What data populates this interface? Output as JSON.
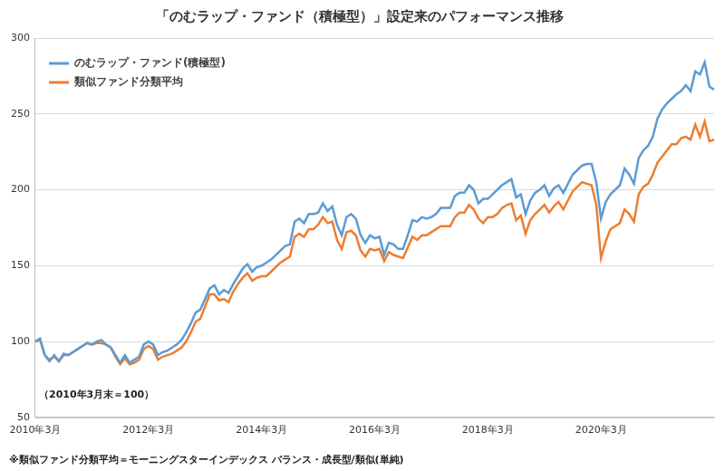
{
  "chart_data": {
    "type": "line",
    "title": "「のむラップ・ファンド（積極型）」設定来のパフォーマンス推移",
    "annotations": [
      "（2010年3月末＝100）",
      "※類似ファンド分類平均＝モーニングスターインデックス バランス・成長型/類似(単純)"
    ],
    "categories": [
      "2010年3月",
      null,
      null,
      null,
      null,
      null,
      null,
      null,
      null,
      null,
      null,
      null,
      null,
      null,
      null,
      null,
      null,
      null,
      null,
      null,
      null,
      null,
      null,
      null,
      "2012年3月",
      null,
      null,
      null,
      null,
      null,
      null,
      null,
      null,
      null,
      null,
      null,
      null,
      null,
      null,
      null,
      null,
      null,
      null,
      null,
      null,
      null,
      null,
      null,
      "2014年3月",
      null,
      null,
      null,
      null,
      null,
      null,
      null,
      null,
      null,
      null,
      null,
      null,
      null,
      null,
      null,
      null,
      null,
      null,
      null,
      null,
      null,
      null,
      null,
      "2016年3月",
      null,
      null,
      null,
      null,
      null,
      null,
      null,
      null,
      null,
      null,
      null,
      null,
      null,
      null,
      null,
      null,
      null,
      null,
      null,
      null,
      null,
      null,
      null,
      "2018年3月",
      null,
      null,
      null,
      null,
      null,
      null,
      null,
      null,
      null,
      null,
      null,
      null,
      null,
      null,
      null,
      null,
      null,
      null,
      null,
      null,
      null,
      null,
      null,
      "2020年3月",
      null,
      null,
      null,
      null,
      null,
      null,
      null,
      null,
      null,
      null,
      null,
      null,
      null,
      null,
      null,
      null,
      null,
      null,
      null,
      null,
      null,
      null,
      null,
      null
    ],
    "series": [
      {
        "name": "のむラップ・ファンド(積極型)",
        "color": "#5b9bd5",
        "values": [
          100,
          102,
          91,
          87,
          91,
          87,
          92,
          91,
          93,
          95,
          97,
          99,
          98,
          100,
          101,
          98,
          96,
          91,
          86,
          91,
          86,
          88,
          90,
          98,
          100,
          98,
          91,
          93,
          94,
          96,
          98,
          101,
          106,
          112,
          119,
          121,
          128,
          135,
          137,
          131,
          134,
          132,
          138,
          143,
          148,
          151,
          146,
          149,
          150,
          152,
          154,
          157,
          160,
          163,
          164,
          179,
          181,
          178,
          184,
          184,
          185,
          191,
          186,
          189,
          177,
          170,
          182,
          184,
          181,
          170,
          165,
          170,
          168,
          169,
          157,
          165,
          164,
          161,
          161,
          170,
          180,
          179,
          182,
          181,
          182,
          184,
          188,
          188,
          188,
          196,
          198,
          198,
          203,
          200,
          191,
          194,
          194,
          197,
          200,
          203,
          205,
          207,
          195,
          197,
          184,
          193,
          198,
          200,
          203,
          196,
          201,
          203,
          198,
          204,
          210,
          213,
          216,
          217,
          217,
          205,
          181,
          192,
          197,
          200,
          203,
          214,
          210,
          204,
          221,
          226,
          229,
          235,
          247,
          253,
          257,
          260,
          263,
          265,
          269,
          265,
          278,
          276,
          284,
          268,
          266
        ]
      },
      {
        "name": "類似ファンド分類平均",
        "color": "#ed7d31",
        "values": [
          100,
          101,
          91,
          88,
          90,
          87,
          91,
          91,
          93,
          95,
          97,
          99,
          98,
          99,
          99,
          98,
          96,
          90,
          85,
          89,
          85,
          86,
          88,
          95,
          97,
          95,
          88,
          90,
          91,
          92,
          94,
          96,
          100,
          106,
          113,
          115,
          123,
          131,
          131,
          127,
          128,
          126,
          133,
          138,
          142,
          145,
          140,
          142,
          143,
          143,
          146,
          149,
          152,
          154,
          156,
          169,
          171,
          169,
          174,
          174,
          177,
          182,
          178,
          179,
          167,
          161,
          172,
          173,
          170,
          160,
          156,
          161,
          160,
          161,
          153,
          159,
          157,
          156,
          155,
          162,
          169,
          167,
          170,
          170,
          172,
          174,
          176,
          176,
          176,
          182,
          185,
          185,
          190,
          187,
          181,
          178,
          182,
          182,
          184,
          188,
          190,
          191,
          180,
          183,
          171,
          180,
          184,
          187,
          190,
          185,
          189,
          192,
          187,
          193,
          199,
          202,
          205,
          204,
          203,
          190,
          155,
          166,
          174,
          176,
          178,
          187,
          184,
          179,
          197,
          202,
          204,
          210,
          218,
          222,
          226,
          230,
          230,
          234,
          235,
          233,
          243,
          235,
          245,
          232,
          233
        ]
      }
    ],
    "ylim": [
      50,
      300
    ],
    "yticks": [
      50,
      100,
      150,
      200,
      250,
      300
    ],
    "grid": true,
    "legend": "upper left"
  }
}
